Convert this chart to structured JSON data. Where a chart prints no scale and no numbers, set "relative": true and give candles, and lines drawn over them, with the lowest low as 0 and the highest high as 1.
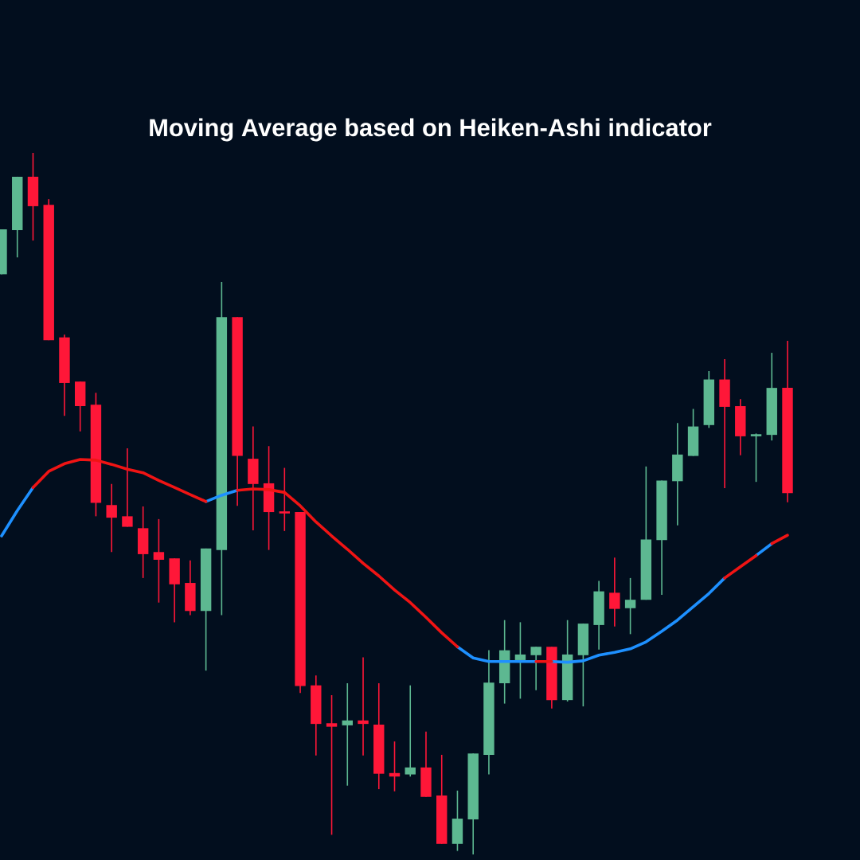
{
  "chart_data": {
    "type": "candlestick",
    "title": "Moving Average based on Heiken-Ashi indicator",
    "relative": true,
    "categories": [
      null,
      null,
      null,
      null,
      null,
      null,
      null,
      null,
      null,
      null,
      null,
      null,
      null,
      null,
      null,
      null,
      null,
      null,
      null,
      null,
      null,
      null,
      null,
      null,
      null,
      null,
      null,
      null,
      null,
      null,
      null,
      null,
      null,
      null,
      null,
      null,
      null,
      null,
      null,
      null,
      null,
      null,
      null,
      null,
      null,
      null,
      null,
      null,
      null,
      null,
      null
    ],
    "ohlc": [
      [
        0.827,
        0.891,
        0.827,
        0.891
      ],
      [
        0.89,
        0.966,
        0.851,
        0.966
      ],
      [
        0.966,
        1.0,
        0.875,
        0.924
      ],
      [
        0.926,
        0.934,
        0.733,
        0.733
      ],
      [
        0.737,
        0.741,
        0.625,
        0.672
      ],
      [
        0.674,
        0.674,
        0.603,
        0.639
      ],
      [
        0.641,
        0.658,
        0.482,
        0.501
      ],
      [
        0.498,
        0.528,
        0.431,
        0.48
      ],
      [
        0.482,
        0.579,
        0.467,
        0.467
      ],
      [
        0.465,
        0.496,
        0.394,
        0.428
      ],
      [
        0.431,
        0.478,
        0.359,
        0.42
      ],
      [
        0.422,
        0.422,
        0.331,
        0.385
      ],
      [
        0.387,
        0.419,
        0.341,
        0.347
      ],
      [
        0.347,
        0.436,
        0.262,
        0.436
      ],
      [
        0.434,
        0.816,
        0.341,
        0.766
      ],
      [
        0.766,
        0.766,
        0.497,
        0.568
      ],
      [
        0.564,
        0.61,
        0.462,
        0.528
      ],
      [
        0.529,
        0.582,
        0.434,
        0.488
      ],
      [
        0.489,
        0.551,
        0.461,
        0.486
      ],
      [
        0.488,
        0.488,
        0.23,
        0.24
      ],
      [
        0.241,
        0.255,
        0.141,
        0.186
      ],
      [
        0.187,
        0.227,
        0.028,
        0.182
      ],
      [
        0.184,
        0.244,
        0.098,
        0.191
      ],
      [
        0.191,
        0.281,
        0.141,
        0.186
      ],
      [
        0.185,
        0.244,
        0.093,
        0.115
      ],
      [
        0.116,
        0.161,
        0.09,
        0.111
      ],
      [
        0.114,
        0.241,
        0.111,
        0.124
      ],
      [
        0.124,
        0.175,
        0.082,
        0.082
      ],
      [
        0.084,
        0.142,
        0.015,
        0.015
      ],
      [
        0.015,
        0.091,
        0.005,
        0.051
      ],
      [
        0.05,
        0.144,
        0,
        0.144
      ],
      [
        0.142,
        0.291,
        0.114,
        0.245
      ],
      [
        0.244,
        0.334,
        0.215,
        0.291
      ],
      [
        0.277,
        0.331,
        0.222,
        0.285
      ],
      [
        0.284,
        0.296,
        0.234,
        0.296
      ],
      [
        0.296,
        0.296,
        0.208,
        0.22
      ],
      [
        0.22,
        0.334,
        0.218,
        0.285
      ],
      [
        0.284,
        0.329,
        0.211,
        0.329
      ],
      [
        0.327,
        0.39,
        0.292,
        0.375
      ],
      [
        0.373,
        0.423,
        0.325,
        0.35
      ],
      [
        0.351,
        0.394,
        0.314,
        0.363
      ],
      [
        0.363,
        0.553,
        0.363,
        0.449
      ],
      [
        0.448,
        0.533,
        0.37,
        0.533
      ],
      [
        0.532,
        0.615,
        0.469,
        0.57
      ],
      [
        0.568,
        0.635,
        0.568,
        0.61
      ],
      [
        0.612,
        0.689,
        0.608,
        0.677
      ],
      [
        0.677,
        0.706,
        0.522,
        0.638
      ],
      [
        0.639,
        0.649,
        0.569,
        0.596
      ],
      [
        0.596,
        0.6,
        0.531,
        0.599
      ],
      [
        0.598,
        0.715,
        0.59,
        0.665
      ],
      [
        0.665,
        0.732,
        0.502,
        0.515
      ]
    ],
    "colors": [
      "#5db891",
      "#5db891",
      "#ff1738",
      "#ff1738",
      "#ff1738",
      "#ff1738",
      "#ff1738",
      "#ff1738",
      "#ff1738",
      "#ff1738",
      "#ff1738",
      "#ff1738",
      "#ff1738",
      "#5db891",
      "#5db891",
      "#ff1738",
      "#ff1738",
      "#ff1738",
      "#ff1738",
      "#ff1738",
      "#ff1738",
      "#ff1738",
      "#5db891",
      "#ff1738",
      "#ff1738",
      "#ff1738",
      "#5db891",
      "#ff1738",
      "#ff1738",
      "#5db891",
      "#5db891",
      "#5db891",
      "#5db891",
      "#5db891",
      "#5db891",
      "#ff1738",
      "#5db891",
      "#5db891",
      "#5db891",
      "#ff1738",
      "#5db891",
      "#5db891",
      "#5db891",
      "#5db891",
      "#5db891",
      "#5db891",
      "#ff1738",
      "#ff1738",
      "#5db891",
      "#5db891",
      "#ff1738"
    ],
    "series": [
      {
        "type": "line",
        "color": "#1e90ff",
        "values": [
          0.454,
          0.49,
          0.523,
          null,
          null,
          null,
          null,
          null,
          null,
          null,
          null,
          null,
          null,
          0.503,
          0.512,
          0.519,
          null,
          null,
          null,
          null,
          null,
          null,
          null,
          null,
          null,
          null,
          null,
          null,
          null,
          0.296,
          0.28,
          0.275,
          0.275,
          0.275,
          0.275,
          null,
          null,
          null,
          null,
          null,
          null,
          null,
          null,
          null,
          null,
          null,
          null,
          null,
          0.426,
          0.443,
          null
        ]
      },
      {
        "type": "line",
        "color": "#1e90ff",
        "values": [
          null,
          null,
          null,
          null,
          null,
          null,
          null,
          null,
          null,
          null,
          null,
          null,
          null,
          null,
          null,
          null,
          null,
          null,
          null,
          null,
          null,
          null,
          null,
          null,
          null,
          null,
          null,
          null,
          null,
          null,
          null,
          null,
          null,
          null,
          null,
          0.275,
          0.274,
          0.276,
          0.284,
          0.288,
          0.293,
          0.303,
          0.318,
          0.334,
          0.353,
          0.372,
          0.394,
          null,
          null,
          null,
          null
        ]
      },
      {
        "type": "line",
        "color": "#f01414",
        "values": [
          null,
          null,
          0.523,
          0.546,
          0.557,
          0.563,
          0.562,
          0.556,
          0.549,
          0.544,
          0.533,
          0.523,
          0.513,
          0.503,
          null,
          0.519,
          0.521,
          0.52,
          0.516,
          0.497,
          0.474,
          0.454,
          0.435,
          0.415,
          0.397,
          0.377,
          0.359,
          0.338,
          0.316,
          0.296,
          null,
          null,
          null,
          null,
          0.275,
          0.275,
          null,
          null,
          null,
          null,
          null,
          null,
          null,
          null,
          null,
          null,
          0.394,
          0.41,
          0.426,
          null,
          null
        ]
      },
      {
        "type": "line",
        "color": "#f01414",
        "values": [
          null,
          null,
          null,
          null,
          null,
          null,
          null,
          null,
          null,
          null,
          null,
          null,
          null,
          null,
          null,
          null,
          null,
          null,
          null,
          null,
          null,
          null,
          null,
          null,
          null,
          null,
          null,
          null,
          null,
          null,
          null,
          null,
          null,
          null,
          null,
          null,
          null,
          null,
          null,
          null,
          null,
          null,
          null,
          null,
          null,
          null,
          null,
          null,
          null,
          0.443,
          0.455
        ]
      }
    ]
  }
}
